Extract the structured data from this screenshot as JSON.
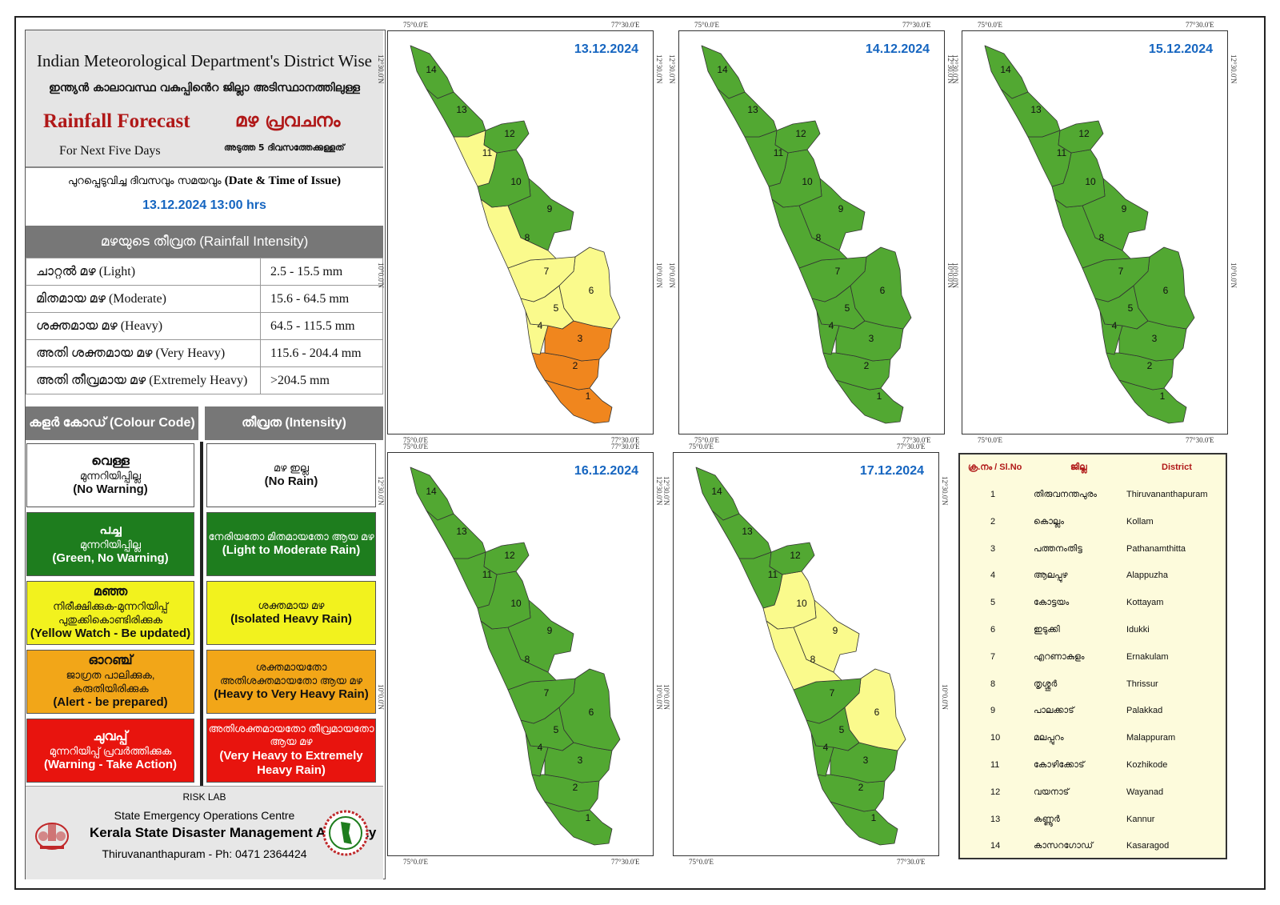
{
  "header": {
    "title_en": "Indian Meteorological Department's District Wise",
    "title_ml": "ഇന്ത്യൻ കാലാവസ്ഥ വകുപ്പിൻെറ ജില്ലാ അടിസ്ഥാനത്തിലുള്ള",
    "forecast_en": "Rainfall Forecast",
    "forecast_ml": "മഴ പ്രവചനം",
    "next_days_en": "For Next Five Days",
    "next_days_ml": "അടുത്ത 5 ദിവസത്തേക്കുള്ളത്"
  },
  "issue": {
    "label_ml": "പുറപ്പെടുവിച്ച ദിവസവും സമയവും",
    "label_en": "(Date & Time of Issue)",
    "datetime": "13.12.2024 13:00 hrs"
  },
  "intensity": {
    "heading": "മഴയുടെ തീവ്രത (Rainfall Intensity)",
    "rows": [
      {
        "label": "ചാറ്റൽ മഴ (Light)",
        "range": "2.5 - 15.5 mm"
      },
      {
        "label": "മിതമായ മഴ (Moderate)",
        "range": "15.6 - 64.5 mm"
      },
      {
        "label": "ശക്തമായ മഴ (Heavy)",
        "range": "64.5 - 115.5 mm"
      },
      {
        "label": "അതി ശക്തമായ മഴ (Very Heavy)",
        "range": "115.6 - 204.4 mm"
      },
      {
        "label": "അതി തീവ്രമായ മഴ (Extremely Heavy)",
        "range": ">204.5 mm"
      }
    ]
  },
  "colour_code": {
    "heading_left": "കളർ കോഡ് (Colour Code)",
    "heading_right": "തീവ്രത (Intensity)",
    "rows": [
      {
        "bg": "#ffffff",
        "fg": "#111111",
        "c1": "വെള്ള",
        "c2": "മുന്നറിയിപ്പില്ല",
        "c3": "(No Warning)",
        "i1": "മഴ ഇല്ല",
        "i2": "(No Rain)"
      },
      {
        "bg": "#1e7d1e",
        "fg": "#ffffff",
        "c1": "പച്ച",
        "c2": "മുന്നറിയിപ്പില്ല",
        "c3": "(Green, No Warning)",
        "i1": "നേരിയതോ മിതമായതോ ആയ മഴ",
        "i2": "(Light to Moderate Rain)"
      },
      {
        "bg": "#f2f21e",
        "fg": "#111111",
        "c1": "മഞ്ഞ",
        "c2": "നിരീക്ഷിക്കുക-മുന്നറിയിപ്പ് പുതുക്കികൊണ്ടിരിക്കുക",
        "c3": "(Yellow Watch - Be updated)",
        "i1": "ശക്തമായ മഴ",
        "i2": "(Isolated Heavy Rain)"
      },
      {
        "bg": "#f2a618",
        "fg": "#111111",
        "c1": "ഓറഞ്ച്",
        "c2": "ജാഗ്രത പാലിക്കുക, കരുതിയിരിക്കുക",
        "c3": "(Alert - be prepared)",
        "i1": "ശക്തമായതോ അതിശക്തമായതോ ആയ മഴ",
        "i2": "(Heavy to Very Heavy Rain)"
      },
      {
        "bg": "#e8140e",
        "fg": "#ffffff",
        "c1": "ചുവപ്പ്",
        "c2": "മുന്നറിയിപ്പ് പ്രവർത്തിക്കുക",
        "c3": "(Warning - Take Action)",
        "i1": "അതിശക്തമായതോ തീവ്രമായതോ ആയ മഴ",
        "i2": "(Very Heavy to Extremely Heavy Rain)"
      }
    ]
  },
  "footer": {
    "lab": "RISK LAB",
    "centre": "State Emergency Operations Centre",
    "authority": "Kerala State Disaster Management Authority",
    "address": "Thiruvananthapuram - Ph: 0471 2364424"
  },
  "coords": {
    "lon_w": "75°0.0'E",
    "lon_e": "77°30.0'E",
    "lat_n": "12°30.0'N",
    "lat_s": "10°0.0'N"
  },
  "colors": {
    "green": "#52a832",
    "yellow": "#fafa8c",
    "orange": "#f0861e",
    "boundary": "#333333"
  },
  "panels": [
    {
      "date": "13.12.2024",
      "districts": {
        "1": "orange",
        "2": "orange",
        "3": "orange",
        "4": "yellow",
        "5": "yellow",
        "6": "yellow",
        "7": "yellow",
        "8": "yellow",
        "9": "green",
        "10": "green",
        "11": "yellow",
        "12": "green",
        "13": "green",
        "14": "green"
      }
    },
    {
      "date": "14.12.2024",
      "districts": {
        "1": "green",
        "2": "green",
        "3": "green",
        "4": "green",
        "5": "green",
        "6": "green",
        "7": "green",
        "8": "green",
        "9": "green",
        "10": "green",
        "11": "green",
        "12": "green",
        "13": "green",
        "14": "green"
      }
    },
    {
      "date": "15.12.2024",
      "districts": {
        "1": "green",
        "2": "green",
        "3": "green",
        "4": "green",
        "5": "green",
        "6": "green",
        "7": "green",
        "8": "green",
        "9": "green",
        "10": "green",
        "11": "green",
        "12": "green",
        "13": "green",
        "14": "green"
      }
    },
    {
      "date": "16.12.2024",
      "districts": {
        "1": "green",
        "2": "green",
        "3": "green",
        "4": "green",
        "5": "green",
        "6": "green",
        "7": "green",
        "8": "green",
        "9": "green",
        "10": "green",
        "11": "green",
        "12": "green",
        "13": "green",
        "14": "green"
      }
    },
    {
      "date": "17.12.2024",
      "districts": {
        "1": "green",
        "2": "green",
        "3": "green",
        "4": "green",
        "5": "green",
        "6": "yellow",
        "7": "green",
        "8": "yellow",
        "9": "yellow",
        "10": "yellow",
        "11": "green",
        "12": "green",
        "13": "green",
        "14": "green"
      }
    }
  ],
  "district_table": {
    "headers": [
      "ക്ര.നം / Sl.No",
      "ജില്ല",
      "District"
    ],
    "rows": [
      {
        "no": "1",
        "ml": "തിരുവനന്തപുരം",
        "en": "Thiruvananthapuram"
      },
      {
        "no": "2",
        "ml": "കൊല്ലം",
        "en": "Kollam"
      },
      {
        "no": "3",
        "ml": "പത്തനംതിട്ട",
        "en": "Pathanamthitta"
      },
      {
        "no": "4",
        "ml": "ആലപ്പുഴ",
        "en": "Alappuzha"
      },
      {
        "no": "5",
        "ml": "കോട്ടയം",
        "en": "Kottayam"
      },
      {
        "no": "6",
        "ml": "ഇടുക്കി",
        "en": "Idukki"
      },
      {
        "no": "7",
        "ml": "എറണാകുളം",
        "en": "Ernakulam"
      },
      {
        "no": "8",
        "ml": "തൃശ്ശൂർ",
        "en": "Thrissur"
      },
      {
        "no": "9",
        "ml": "പാലക്കാട്",
        "en": "Palakkad"
      },
      {
        "no": "10",
        "ml": "മലപ്പുറം",
        "en": "Malappuram"
      },
      {
        "no": "11",
        "ml": "കോഴിക്കോട്",
        "en": "Kozhikode"
      },
      {
        "no": "12",
        "ml": "വയനാട്",
        "en": "Wayanad"
      },
      {
        "no": "13",
        "ml": "കണ്ണൂർ",
        "en": "Kannur"
      },
      {
        "no": "14",
        "ml": "കാസറഗോഡ്",
        "en": "Kasaragod"
      }
    ]
  }
}
